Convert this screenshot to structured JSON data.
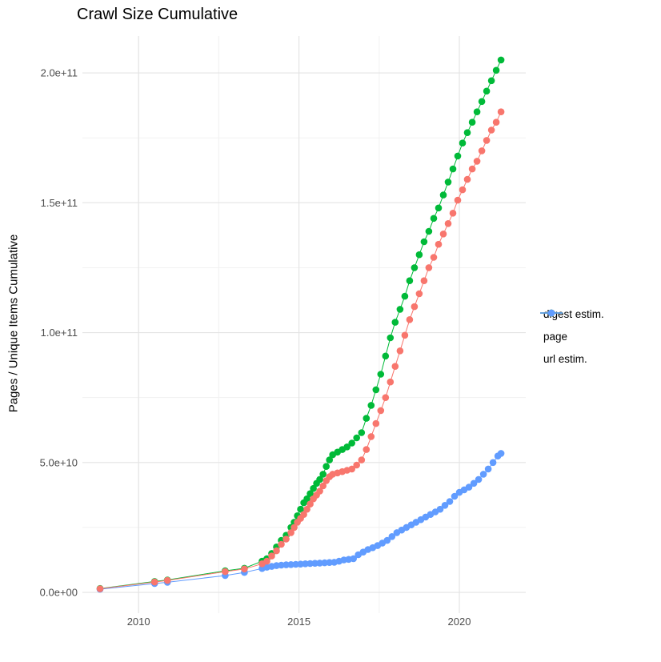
{
  "chart_data": {
    "type": "scatter",
    "title": "Crawl Size Cumulative",
    "xlabel": "",
    "ylabel": "Pages / Unique Items Cumulative",
    "grid": true,
    "legend_position": "right",
    "xlim": [
      2008.25,
      2022.07
    ],
    "ylim": [
      -8000000000.0,
      214200000000.0
    ],
    "x_ticks": [
      {
        "value": 2010,
        "label": "2010"
      },
      {
        "value": 2015,
        "label": "2015"
      },
      {
        "value": 2020,
        "label": "2020"
      }
    ],
    "x_minor": [
      2012.5,
      2017.5
    ],
    "y_ticks": [
      {
        "value": 0,
        "label": "0.0e+00"
      },
      {
        "value": 50000000000.0,
        "label": "5.0e+10"
      },
      {
        "value": 100000000000.0,
        "label": "1.0e+11"
      },
      {
        "value": 150000000000.0,
        "label": "1.5e+11"
      },
      {
        "value": 200000000000.0,
        "label": "2.0e+11"
      }
    ],
    "y_minor": [
      25000000000.0,
      75000000000.0,
      125000000000.0,
      175000000000.0
    ],
    "colors": {
      "digest": "#F8766D",
      "page": "#00BA38",
      "url": "#619CFF",
      "grid_major": "#E4E4E4",
      "grid_minor": "#F1F1F1",
      "tick_label": "#4D4D4D"
    },
    "series": [
      {
        "name": "digest estim.",
        "color": "#F8766D",
        "points": [
          [
            2008.8,
            1400000000.0
          ],
          [
            2010.5,
            4000000000.0
          ],
          [
            2010.9,
            4600000000.0
          ],
          [
            2012.7,
            8000000000.0
          ],
          [
            2013.3,
            9000000000.0
          ],
          [
            2013.85,
            11000000000.0
          ],
          [
            2014.0,
            12000000000.0
          ],
          [
            2014.15,
            14000000000.0
          ],
          [
            2014.3,
            16000000000.0
          ],
          [
            2014.45,
            18500000000.0
          ],
          [
            2014.6,
            20500000000.0
          ],
          [
            2014.75,
            23000000000.0
          ],
          [
            2014.85,
            25000000000.0
          ],
          [
            2014.95,
            27000000000.0
          ],
          [
            2015.05,
            28500000000.0
          ],
          [
            2015.15,
            30000000000.0
          ],
          [
            2015.25,
            32000000000.0
          ],
          [
            2015.35,
            34000000000.0
          ],
          [
            2015.45,
            36000000000.0
          ],
          [
            2015.55,
            37500000000.0
          ],
          [
            2015.65,
            39000000000.0
          ],
          [
            2015.75,
            41000000000.0
          ],
          [
            2015.85,
            43000000000.0
          ],
          [
            2015.95,
            44500000000.0
          ],
          [
            2016.05,
            45500000000.0
          ],
          [
            2016.2,
            46000000000.0
          ],
          [
            2016.35,
            46500000000.0
          ],
          [
            2016.5,
            47000000000.0
          ],
          [
            2016.65,
            47500000000.0
          ],
          [
            2016.8,
            49000000000.0
          ],
          [
            2016.95,
            51000000000.0
          ],
          [
            2017.1,
            55000000000.0
          ],
          [
            2017.25,
            60000000000.0
          ],
          [
            2017.4,
            65000000000.0
          ],
          [
            2017.55,
            70000000000.0
          ],
          [
            2017.7,
            75000000000.0
          ],
          [
            2017.85,
            81000000000.0
          ],
          [
            2018.0,
            87000000000.0
          ],
          [
            2018.15,
            93000000000.0
          ],
          [
            2018.3,
            99000000000.0
          ],
          [
            2018.45,
            105000000000.0
          ],
          [
            2018.6,
            110000000000.0
          ],
          [
            2018.75,
            115000000000.0
          ],
          [
            2018.9,
            120000000000.0
          ],
          [
            2019.05,
            125000000000.0
          ],
          [
            2019.2,
            129000000000.0
          ],
          [
            2019.35,
            134000000000.0
          ],
          [
            2019.5,
            138000000000.0
          ],
          [
            2019.65,
            142000000000.0
          ],
          [
            2019.8,
            146000000000.0
          ],
          [
            2019.95,
            151000000000.0
          ],
          [
            2020.1,
            155000000000.0
          ],
          [
            2020.25,
            159000000000.0
          ],
          [
            2020.4,
            163000000000.0
          ],
          [
            2020.55,
            166000000000.0
          ],
          [
            2020.7,
            170000000000.0
          ],
          [
            2020.85,
            174000000000.0
          ],
          [
            2021.0,
            178000000000.0
          ],
          [
            2021.15,
            181000000000.0
          ],
          [
            2021.3,
            185000000000.0
          ]
        ]
      },
      {
        "name": "page",
        "color": "#00BA38",
        "points": [
          [
            2008.8,
            1500000000.0
          ],
          [
            2010.5,
            4200000000.0
          ],
          [
            2010.9,
            4800000000.0
          ],
          [
            2012.7,
            8300000000.0
          ],
          [
            2013.3,
            9300000000.0
          ],
          [
            2013.85,
            12000000000.0
          ],
          [
            2014.0,
            13000000000.0
          ],
          [
            2014.15,
            15000000000.0
          ],
          [
            2014.3,
            17500000000.0
          ],
          [
            2014.45,
            20000000000.0
          ],
          [
            2014.6,
            22000000000.0
          ],
          [
            2014.75,
            25000000000.0
          ],
          [
            2014.85,
            27000000000.0
          ],
          [
            2014.95,
            29500000000.0
          ],
          [
            2015.05,
            32000000000.0
          ],
          [
            2015.15,
            34500000000.0
          ],
          [
            2015.25,
            36000000000.0
          ],
          [
            2015.35,
            38000000000.0
          ],
          [
            2015.45,
            40000000000.0
          ],
          [
            2015.55,
            42000000000.0
          ],
          [
            2015.65,
            43500000000.0
          ],
          [
            2015.75,
            45500000000.0
          ],
          [
            2015.85,
            48500000000.0
          ],
          [
            2015.95,
            51000000000.0
          ],
          [
            2016.05,
            53000000000.0
          ],
          [
            2016.2,
            54000000000.0
          ],
          [
            2016.35,
            55000000000.0
          ],
          [
            2016.5,
            56000000000.0
          ],
          [
            2016.65,
            57500000000.0
          ],
          [
            2016.8,
            59500000000.0
          ],
          [
            2016.95,
            61500000000.0
          ],
          [
            2017.1,
            67000000000.0
          ],
          [
            2017.25,
            72000000000.0
          ],
          [
            2017.4,
            78000000000.0
          ],
          [
            2017.55,
            84000000000.0
          ],
          [
            2017.7,
            91000000000.0
          ],
          [
            2017.85,
            98000000000.0
          ],
          [
            2018.0,
            104000000000.0
          ],
          [
            2018.15,
            109000000000.0
          ],
          [
            2018.3,
            114000000000.0
          ],
          [
            2018.45,
            120000000000.0
          ],
          [
            2018.6,
            125000000000.0
          ],
          [
            2018.75,
            130000000000.0
          ],
          [
            2018.9,
            135000000000.0
          ],
          [
            2019.05,
            139000000000.0
          ],
          [
            2019.2,
            144000000000.0
          ],
          [
            2019.35,
            148000000000.0
          ],
          [
            2019.5,
            153000000000.0
          ],
          [
            2019.65,
            158000000000.0
          ],
          [
            2019.8,
            163000000000.0
          ],
          [
            2019.95,
            168000000000.0
          ],
          [
            2020.1,
            173000000000.0
          ],
          [
            2020.25,
            177000000000.0
          ],
          [
            2020.4,
            181000000000.0
          ],
          [
            2020.55,
            185000000000.0
          ],
          [
            2020.7,
            189000000000.0
          ],
          [
            2020.85,
            193000000000.0
          ],
          [
            2021.0,
            197000000000.0
          ],
          [
            2021.15,
            201000000000.0
          ],
          [
            2021.3,
            205000000000.0
          ]
        ]
      },
      {
        "name": "url estim.",
        "color": "#619CFF",
        "points": [
          [
            2008.8,
            1200000000.0
          ],
          [
            2010.5,
            3400000000.0
          ],
          [
            2010.9,
            3900000000.0
          ],
          [
            2012.7,
            6500000000.0
          ],
          [
            2013.3,
            7700000000.0
          ],
          [
            2013.85,
            9200000000.0
          ],
          [
            2014.0,
            9700000000.0
          ],
          [
            2014.15,
            10000000000.0
          ],
          [
            2014.3,
            10300000000.0
          ],
          [
            2014.45,
            10500000000.0
          ],
          [
            2014.6,
            10600000000.0
          ],
          [
            2014.75,
            10700000000.0
          ],
          [
            2014.9,
            10800000000.0
          ],
          [
            2015.05,
            10900000000.0
          ],
          [
            2015.2,
            11000000000.0
          ],
          [
            2015.35,
            11100000000.0
          ],
          [
            2015.5,
            11200000000.0
          ],
          [
            2015.65,
            11300000000.0
          ],
          [
            2015.8,
            11400000000.0
          ],
          [
            2015.95,
            11500000000.0
          ],
          [
            2016.1,
            11600000000.0
          ],
          [
            2016.25,
            12000000000.0
          ],
          [
            2016.4,
            12500000000.0
          ],
          [
            2016.55,
            12700000000.0
          ],
          [
            2016.7,
            13000000000.0
          ],
          [
            2016.85,
            14500000000.0
          ],
          [
            2017.0,
            15500000000.0
          ],
          [
            2017.15,
            16500000000.0
          ],
          [
            2017.3,
            17200000000.0
          ],
          [
            2017.45,
            18000000000.0
          ],
          [
            2017.6,
            19000000000.0
          ],
          [
            2017.75,
            20000000000.0
          ],
          [
            2017.9,
            21500000000.0
          ],
          [
            2018.05,
            23000000000.0
          ],
          [
            2018.2,
            24000000000.0
          ],
          [
            2018.35,
            25000000000.0
          ],
          [
            2018.5,
            26000000000.0
          ],
          [
            2018.65,
            27000000000.0
          ],
          [
            2018.8,
            28000000000.0
          ],
          [
            2018.95,
            29000000000.0
          ],
          [
            2019.1,
            30000000000.0
          ],
          [
            2019.25,
            31000000000.0
          ],
          [
            2019.4,
            32000000000.0
          ],
          [
            2019.55,
            33500000000.0
          ],
          [
            2019.7,
            35000000000.0
          ],
          [
            2019.85,
            37000000000.0
          ],
          [
            2020.0,
            38500000000.0
          ],
          [
            2020.15,
            39500000000.0
          ],
          [
            2020.3,
            40500000000.0
          ],
          [
            2020.45,
            42000000000.0
          ],
          [
            2020.6,
            43500000000.0
          ],
          [
            2020.75,
            45500000000.0
          ],
          [
            2020.9,
            47500000000.0
          ],
          [
            2021.05,
            50000000000.0
          ],
          [
            2021.2,
            52500000000.0
          ],
          [
            2021.3,
            53500000000.0
          ]
        ]
      }
    ]
  },
  "legend": {
    "items": [
      {
        "label": "digest estim."
      },
      {
        "label": "page"
      },
      {
        "label": "url estim."
      }
    ]
  }
}
